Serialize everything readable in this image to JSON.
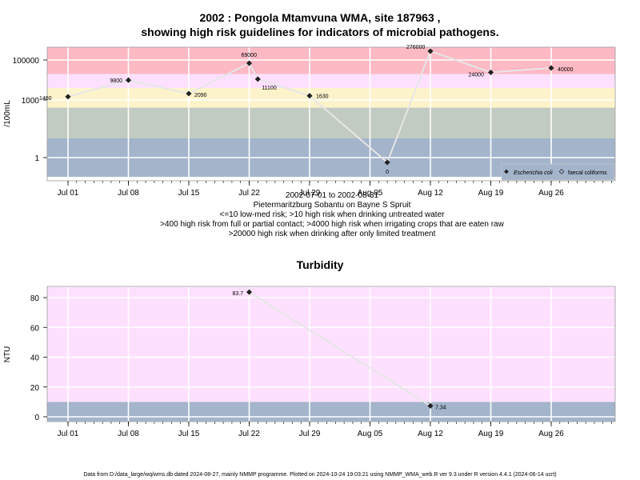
{
  "title_line1": "2002 : Pongola Mtamvuna WMA, site 187963 ,",
  "title_line2": "showing high risk guidelines for indicators of microbial pathogens.",
  "notes": [
    "2002-07-01 to 2002-08-31",
    "Pietermaritzburg Sobantu on Bayne S Spruit",
    "<=10 low-med risk; >10 high risk when drinking untreated water",
    ">400 high risk from full or partial contact; >4000 high risk when irrigating crops that are eaten raw",
    ">20000 high risk when drinking after only limited treatment"
  ],
  "footer": "Data from D:/data_large/wq/wms.db dated 2024-08-27, mainly NMMP programme. Plotted on 2024-10-24 19:03:21 using NMMP_WMA_web.R ver 9.3 under R version 4.4.1 (2024-06-14 ucrt)",
  "chart_data": [
    {
      "type": "line",
      "title": "",
      "ylabel": "/100mL",
      "y_scale": "log",
      "x_tick_labels": [
        "Jul 01",
        "Jul 08",
        "Jul 15",
        "Jul 22",
        "Jul 29",
        "Aug 05",
        "Aug 12",
        "Aug 19",
        "Aug 26"
      ],
      "y_tick_labels": [
        "100000",
        "1000",
        "1"
      ],
      "bands": [
        {
          "from": 0.1,
          "to": 10,
          "color": "#a3b4cb"
        },
        {
          "from": 10,
          "to": 400,
          "color": "#c2cbc1"
        },
        {
          "from": 400,
          "to": 4000,
          "color": "#fdf3cb"
        },
        {
          "from": 4000,
          "to": 20000,
          "color": "#fde0fe"
        },
        {
          "from": 20000,
          "to": 500000,
          "color": "#fdb9c4"
        }
      ],
      "legend": {
        "position": "bottom-right",
        "entries": [
          "Escherichia coli",
          "faecal coliforms"
        ]
      },
      "series": [
        {
          "name": "Escherichia coli",
          "points": [
            {
              "x": "Jul 01",
              "y": 1460,
              "label": "1460"
            },
            {
              "x": "Jul 08",
              "y": 9800,
              "label": "9800"
            },
            {
              "x": "Jul 15",
              "y": 2090,
              "label": "2090"
            },
            {
              "x": "Jul 22",
              "y": 69000,
              "label": "69000"
            },
            {
              "x": "Jul 23",
              "y": 11100,
              "label": "11100"
            },
            {
              "x": "Jul 29",
              "y": 1630,
              "label": "1630"
            },
            {
              "x": "Aug 07",
              "y": 0,
              "label": "0"
            },
            {
              "x": "Aug 12",
              "y": 276000,
              "label": "276000"
            },
            {
              "x": "Aug 19",
              "y": 24000,
              "label": "24000"
            },
            {
              "x": "Aug 26",
              "y": 40000,
              "label": "40000"
            }
          ]
        }
      ]
    },
    {
      "type": "line",
      "title": "Turbidity",
      "ylabel": "NTU",
      "ylim": [
        -3,
        87
      ],
      "x_tick_labels": [
        "Jul 01",
        "Jul 08",
        "Jul 15",
        "Jul 22",
        "Jul 29",
        "Aug 05",
        "Aug 12",
        "Aug 19",
        "Aug 26"
      ],
      "y_tick_labels": [
        "0",
        "20",
        "40",
        "60",
        "80"
      ],
      "bands": [
        {
          "from": -3,
          "to": 10,
          "color": "#a3b4cb"
        },
        {
          "from": 10,
          "to": 87,
          "color": "#fde0fe"
        }
      ],
      "series": [
        {
          "name": "Turbidity",
          "points": [
            {
              "x": "Jul 22",
              "y": 83.7,
              "label": "83.7"
            },
            {
              "x": "Aug 12",
              "y": 7.34,
              "label": "7.34"
            }
          ]
        }
      ]
    }
  ]
}
